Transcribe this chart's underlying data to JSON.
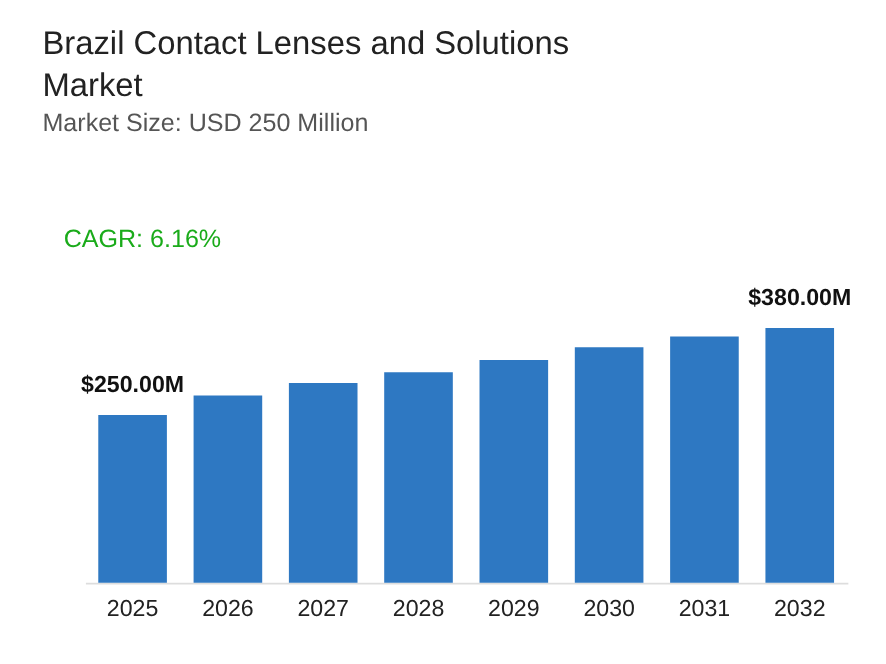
{
  "chart_data": {
    "type": "bar",
    "title": "Brazil Contact Lenses and Solutions Market",
    "subtitle": "Market Size: USD 250 Million",
    "annotations": [
      "CAGR: 6.16%"
    ],
    "categories": [
      "2025",
      "2026",
      "2027",
      "2028",
      "2029",
      "2030",
      "2031",
      "2032"
    ],
    "values": [
      250,
      279,
      298,
      314,
      332,
      351,
      367,
      380
    ],
    "value_labels": [
      "$250.00M",
      null,
      null,
      null,
      null,
      null,
      null,
      "$380.00M"
    ],
    "color": "#2e78c2",
    "tick_labels": "x",
    "grid": false
  }
}
